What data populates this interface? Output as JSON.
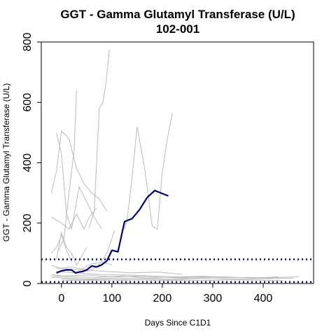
{
  "chart_data": {
    "type": "line",
    "title": "GGT - Gamma Glutamyl Transferase (U/L)",
    "subtitle": "102-001",
    "xlabel": "Days Since C1D1",
    "ylabel": "GGT - Gamma Glutamyl Transferase (U/L)",
    "xlim": [
      -40,
      500
    ],
    "ylim": [
      0,
      800
    ],
    "x_ticks": [
      0,
      100,
      200,
      300,
      400
    ],
    "y_ticks": [
      0,
      200,
      400,
      600,
      800
    ],
    "grid": false,
    "reference_lines": [
      {
        "y": 80,
        "color": "#00008b",
        "style": "dotted"
      },
      {
        "y": 5,
        "color": "#00008b",
        "style": "dotted"
      }
    ],
    "highlight_color": "#00006e",
    "background_color": "#bbbbbb",
    "highlight_series": {
      "x": [
        -10,
        0,
        10,
        20,
        28,
        35,
        42,
        50,
        60,
        70,
        80,
        90,
        100,
        112,
        125,
        140,
        155,
        170,
        185,
        200,
        212
      ],
      "y": [
        35,
        42,
        45,
        45,
        35,
        38,
        40,
        45,
        58,
        55,
        62,
        75,
        110,
        105,
        205,
        215,
        245,
        285,
        308,
        298,
        290
      ]
    },
    "background_series": [
      {
        "x": [
          -20,
          -10,
          0,
          15,
          30,
          45,
          60,
          75,
          90
        ],
        "y": [
          300,
          370,
          505,
          480,
          380,
          330,
          300,
          280,
          240
        ]
      },
      {
        "x": [
          -10,
          0,
          10,
          20,
          35,
          50,
          65,
          80
        ],
        "y": [
          500,
          430,
          230,
          180,
          320,
          270,
          220,
          180
        ]
      },
      {
        "x": [
          -5,
          5,
          15,
          25,
          30
        ],
        "y": [
          110,
          150,
          300,
          440,
          640
        ]
      },
      {
        "x": [
          55,
          65,
          75,
          82,
          88,
          95
        ],
        "y": [
          185,
          240,
          580,
          600,
          660,
          775
        ]
      },
      {
        "x": [
          125,
          130,
          140,
          150,
          165,
          180,
          190,
          200,
          210,
          220
        ],
        "y": [
          180,
          210,
          350,
          520,
          380,
          190,
          180,
          370,
          480,
          565
        ]
      },
      {
        "x": [
          -20,
          0,
          15,
          30,
          45,
          55,
          70
        ],
        "y": [
          220,
          200,
          180,
          230,
          180,
          220,
          250
        ]
      },
      {
        "x": [
          -20,
          -10,
          0,
          10,
          20
        ],
        "y": [
          100,
          120,
          160,
          110,
          70
        ]
      },
      {
        "x": [
          -10,
          0,
          10,
          20,
          30,
          40,
          50
        ],
        "y": [
          80,
          170,
          120,
          100,
          60,
          90,
          120
        ]
      },
      {
        "x": [
          40,
          50,
          60,
          70,
          80,
          90,
          100,
          105
        ],
        "y": [
          50,
          40,
          45,
          55,
          75,
          100,
          150,
          175
        ]
      },
      {
        "x": [
          -20,
          0,
          20,
          40,
          60,
          80,
          100
        ],
        "y": [
          60,
          50,
          55,
          48,
          65,
          70,
          62
        ]
      },
      {
        "x": [
          -20,
          0,
          50,
          100,
          150,
          200,
          260,
          320,
          380,
          430,
          470
        ],
        "y": [
          30,
          25,
          28,
          22,
          24,
          20,
          18,
          22,
          18,
          20,
          22
        ]
      },
      {
        "x": [
          -20,
          10,
          60,
          110,
          160,
          210,
          260,
          310,
          360,
          410,
          460
        ],
        "y": [
          20,
          18,
          15,
          18,
          16,
          14,
          17,
          15,
          14,
          16,
          18
        ]
      },
      {
        "x": [
          -10,
          30,
          80,
          130,
          180,
          230,
          280,
          330,
          380,
          430
        ],
        "y": [
          40,
          35,
          30,
          28,
          25,
          22,
          24,
          20,
          18,
          22
        ]
      },
      {
        "x": [
          0,
          40,
          90,
          140,
          190,
          240,
          290,
          340,
          390,
          440
        ],
        "y": [
          15,
          12,
          14,
          12,
          11,
          12,
          10,
          12,
          11,
          10
        ]
      },
      {
        "x": [
          -20,
          20,
          70,
          120,
          170,
          220,
          270,
          320,
          370,
          420
        ],
        "y": [
          25,
          22,
          20,
          25,
          18,
          20,
          22,
          19,
          20,
          18
        ]
      },
      {
        "x": [
          -10,
          40,
          90,
          140,
          190,
          240
        ],
        "y": [
          50,
          45,
          40,
          35,
          38,
          30
        ]
      },
      {
        "x": [
          0,
          50,
          100,
          150,
          200,
          250,
          300
        ],
        "y": [
          10,
          11,
          9,
          12,
          10,
          11,
          10
        ]
      }
    ]
  }
}
